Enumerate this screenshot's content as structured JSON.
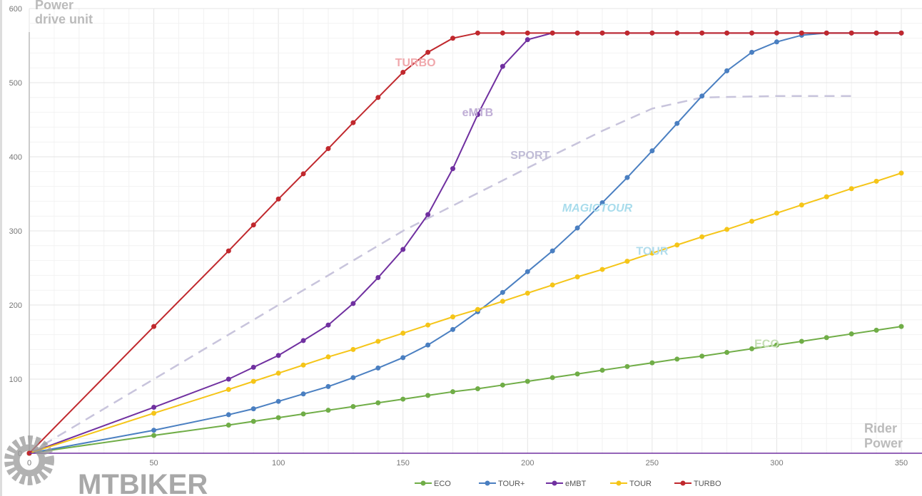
{
  "chart_data": {
    "type": "line",
    "title": "",
    "ylabel": "Power drive unit",
    "xlabel": "Rider Power",
    "xlim": [
      0,
      350
    ],
    "ylim": [
      0,
      600
    ],
    "xticks": [
      0,
      50,
      100,
      150,
      200,
      250,
      300,
      350
    ],
    "yticks": [
      0,
      100,
      200,
      300,
      400,
      500,
      600
    ],
    "grid": true,
    "legend_position": "bottom",
    "series": [
      {
        "name": "ECO",
        "color": "#70ad47",
        "x": [
          0,
          50,
          80,
          90,
          100,
          110,
          120,
          130,
          140,
          150,
          160,
          170,
          180,
          190,
          200,
          210,
          220,
          230,
          240,
          250,
          260,
          270,
          280,
          290,
          300,
          310,
          320,
          330,
          340,
          350
        ],
        "y": [
          0,
          24,
          38,
          43,
          48,
          53,
          58,
          63,
          68,
          73,
          78,
          83,
          87,
          92,
          97,
          102,
          107,
          112,
          117,
          122,
          127,
          131,
          136,
          141,
          146,
          151,
          156,
          161,
          166,
          171
        ]
      },
      {
        "name": "TOUR+",
        "color": "#4a7fc1",
        "x": [
          0,
          50,
          80,
          90,
          100,
          110,
          120,
          130,
          140,
          150,
          160,
          170,
          180,
          190,
          200,
          210,
          220,
          230,
          240,
          250,
          260,
          270,
          280,
          290,
          300,
          310,
          320,
          330,
          340,
          350
        ],
        "y": [
          0,
          31,
          52,
          60,
          70,
          80,
          90,
          102,
          115,
          129,
          146,
          167,
          191,
          217,
          245,
          273,
          304,
          338,
          372,
          408,
          445,
          482,
          516,
          541,
          555,
          564,
          567,
          567,
          567,
          567
        ]
      },
      {
        "name": "eMBT",
        "color": "#7030a0",
        "x": [
          0,
          50,
          80,
          90,
          100,
          110,
          120,
          130,
          140,
          150,
          160,
          170,
          180,
          190,
          200,
          210,
          220,
          230,
          240,
          250,
          260,
          270,
          280,
          290,
          300,
          310,
          320,
          330,
          340,
          350
        ],
        "y": [
          0,
          62,
          100,
          116,
          132,
          152,
          173,
          202,
          237,
          275,
          322,
          384,
          457,
          522,
          558,
          567,
          567,
          567,
          567,
          567,
          567,
          567,
          567,
          567,
          567,
          567,
          567,
          567,
          567,
          567
        ]
      },
      {
        "name": "TOUR",
        "color": "#f5c518",
        "x": [
          0,
          50,
          80,
          90,
          100,
          110,
          120,
          130,
          140,
          150,
          160,
          170,
          180,
          190,
          200,
          210,
          220,
          230,
          240,
          250,
          260,
          270,
          280,
          290,
          300,
          310,
          320,
          330,
          340,
          350
        ],
        "y": [
          0,
          54,
          86,
          97,
          108,
          119,
          130,
          140,
          151,
          162,
          173,
          184,
          194,
          205,
          216,
          227,
          238,
          248,
          259,
          270,
          281,
          292,
          302,
          313,
          324,
          335,
          346,
          357,
          367,
          378
        ]
      },
      {
        "name": "TURBO",
        "color": "#c0282d",
        "x": [
          0,
          50,
          80,
          90,
          100,
          110,
          120,
          130,
          140,
          150,
          160,
          170,
          180,
          190,
          200,
          210,
          220,
          230,
          240,
          250,
          260,
          270,
          280,
          290,
          300,
          310,
          320,
          330,
          340,
          350
        ],
        "y": [
          0,
          171,
          273,
          308,
          343,
          377,
          411,
          446,
          480,
          514,
          541,
          560,
          567,
          567,
          567,
          567,
          567,
          567,
          567,
          567,
          567,
          567,
          567,
          567,
          567,
          567,
          567,
          567,
          567,
          567
        ]
      }
    ],
    "reference_curve": {
      "name": "SPORT",
      "color": "#c8c4dc",
      "x": [
        0,
        50,
        100,
        150,
        200,
        230,
        250,
        270,
        300,
        330
      ],
      "y": [
        0,
        100,
        200,
        300,
        385,
        435,
        465,
        480,
        482,
        482
      ]
    },
    "annotations": [
      {
        "text": "TURBO",
        "x": 155,
        "y": 522,
        "color": "#f0a8ac"
      },
      {
        "text": "eMTB",
        "x": 180,
        "y": 455,
        "color": "#c0aed6"
      },
      {
        "text": "SPORT",
        "x": 201,
        "y": 397,
        "color": "#c0bcd6"
      },
      {
        "text": "MAGICTOUR",
        "x": 228,
        "y": 326,
        "color": "#a8dcec"
      },
      {
        "text": "TOUR",
        "x": 250,
        "y": 268,
        "color": "#b0dcec"
      },
      {
        "text": "ECO",
        "x": 296,
        "y": 143,
        "color": "#c4deb4"
      }
    ]
  },
  "watermark": "MTBIKER"
}
